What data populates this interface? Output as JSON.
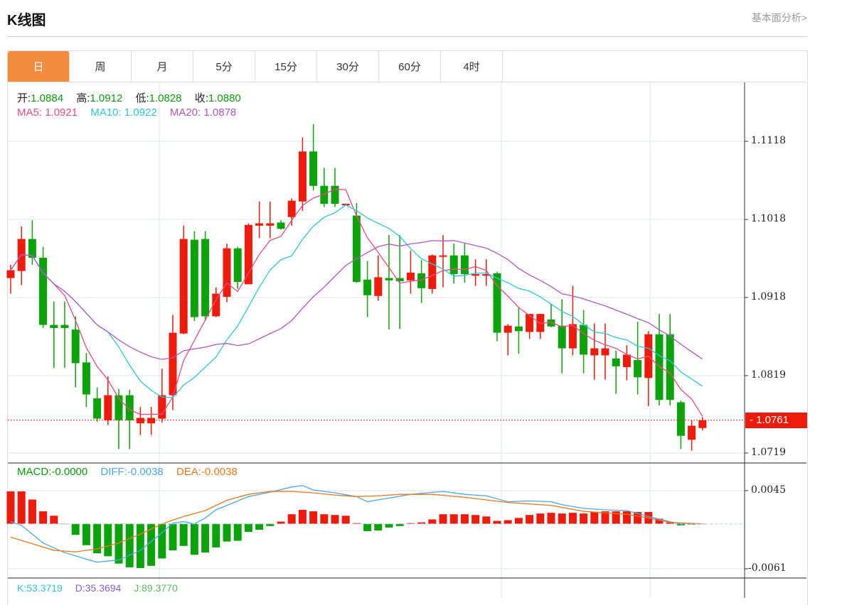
{
  "header": {
    "title": "K线图",
    "link": "基本面分析>"
  },
  "tabs": [
    {
      "label": "日",
      "active": true
    },
    {
      "label": "周"
    },
    {
      "label": "月"
    },
    {
      "label": "5分"
    },
    {
      "label": "15分"
    },
    {
      "label": "30分"
    },
    {
      "label": "60分"
    },
    {
      "label": "4时"
    }
  ],
  "ohlc": {
    "open_label": "开:",
    "open": "1.0884",
    "high_label": "高:",
    "high": "1.0912",
    "low_label": "低:",
    "low": "1.0828",
    "close_label": "收:",
    "close": "1.0880"
  },
  "ma": {
    "ma5_label": "MA5:",
    "ma5": "1.0921",
    "ma10_label": "MA10:",
    "ma10": "1.0922",
    "ma20_label": "MA20:",
    "ma20": "1.0878"
  },
  "macd_info": {
    "macd_label": "MACD:",
    "macd": "-0.0000",
    "diff_label": "DIFF:",
    "diff": "-0.0038",
    "dea_label": "DEA:",
    "dea": "-0.0038"
  },
  "kdj_info": {
    "k_label": "K:",
    "k": "53.3719",
    "d_label": "D:",
    "d": "35.3694",
    "j_label": "J:",
    "j": "89.3770"
  },
  "colors": {
    "up": "#f01a0a",
    "down": "#0aa30a",
    "ma5": "#ee4a7f",
    "ma10": "#2cc6dc",
    "ma20": "#b456c8",
    "diff": "#4aa8f0",
    "dea": "#f5761a",
    "tab_active": "#f28c3f"
  },
  "chart_data": {
    "type": "candlestick",
    "price_axis": {
      "ticks": [
        "1.1118",
        "1.1018",
        "1.0918",
        "1.0819",
        "1.0719"
      ],
      "range": [
        1.0719,
        1.1118
      ]
    },
    "last_price": "1.0761",
    "candles": [
      [
        1.0943,
        1.096,
        1.0923,
        1.0953
      ],
      [
        1.0952,
        1.1009,
        1.0934,
        1.0993
      ],
      [
        1.0993,
        1.1017,
        1.096,
        1.0969
      ],
      [
        1.0969,
        1.0983,
        1.0879,
        1.0883
      ],
      [
        1.0883,
        1.0913,
        1.0828,
        1.0879
      ],
      [
        1.0883,
        1.0913,
        1.0828,
        1.0879
      ],
      [
        1.0877,
        1.0894,
        1.0803,
        1.0834
      ],
      [
        1.0835,
        1.0847,
        1.0778,
        1.0794
      ],
      [
        1.0789,
        1.0803,
        1.0759,
        1.0763
      ],
      [
        1.0761,
        1.0817,
        1.0755,
        1.0793
      ],
      [
        1.0793,
        1.0801,
        1.0724,
        1.0761
      ],
      [
        1.0793,
        1.08,
        1.0724,
        1.0761
      ],
      [
        1.0757,
        1.0778,
        1.0742,
        1.0764
      ],
      [
        1.0757,
        1.0778,
        1.0742,
        1.0764
      ],
      [
        1.0763,
        1.0827,
        1.0758,
        1.0793
      ],
      [
        1.0793,
        1.0896,
        1.0774,
        1.0873
      ],
      [
        1.0872,
        1.101,
        1.0871,
        1.0993
      ],
      [
        1.0992,
        1.1003,
        1.0888,
        1.0893
      ],
      [
        1.0993,
        1.1003,
        1.0888,
        1.0894
      ],
      [
        1.0894,
        1.0931,
        1.0893,
        1.0923
      ],
      [
        1.0919,
        1.0987,
        1.0912,
        1.0981
      ],
      [
        1.0981,
        1.0983,
        1.0929,
        1.0938
      ],
      [
        1.0935,
        1.1013,
        1.0935,
        1.1011
      ],
      [
        1.101,
        1.1041,
        1.0994,
        1.1013
      ],
      [
        1.101,
        1.1041,
        1.0994,
        1.1013
      ],
      [
        1.1014,
        1.1017,
        1.1005,
        1.1006
      ],
      [
        1.1021,
        1.1045,
        1.101,
        1.1042
      ],
      [
        1.1041,
        1.1123,
        1.1029,
        1.1105
      ],
      [
        1.1105,
        1.114,
        1.1055,
        1.1061
      ],
      [
        1.1061,
        1.1084,
        1.1034,
        1.1038
      ],
      [
        1.1061,
        1.1084,
        1.1034,
        1.1038
      ],
      [
        1.1036,
        1.1038,
        1.1036,
        1.1038
      ],
      [
        1.1023,
        1.1039,
        1.0937,
        1.0938
      ],
      [
        1.0941,
        1.0965,
        1.0893,
        1.0921
      ],
      [
        1.092,
        1.0972,
        1.0914,
        1.0944
      ],
      [
        1.0943,
        1.0998,
        1.0877,
        1.094
      ],
      [
        1.0943,
        1.0998,
        1.0878,
        1.0939
      ],
      [
        1.094,
        1.0978,
        1.0923,
        1.095
      ],
      [
        1.0949,
        1.0966,
        1.0911,
        1.093
      ],
      [
        1.0929,
        1.0973,
        1.0923,
        1.0972
      ],
      [
        1.0971,
        1.0998,
        1.0931,
        1.0972
      ],
      [
        1.0972,
        1.0987,
        1.0936,
        1.0948
      ],
      [
        1.0972,
        1.0987,
        1.0937,
        1.0948
      ],
      [
        1.0946,
        1.0967,
        1.0933,
        1.0948
      ],
      [
        1.0946,
        1.0967,
        1.0933,
        1.0948
      ],
      [
        1.0949,
        1.0951,
        1.0862,
        1.0873
      ],
      [
        1.0873,
        1.0884,
        1.0844,
        1.0882
      ],
      [
        1.0881,
        1.0906,
        1.0846,
        1.0875
      ],
      [
        1.0874,
        1.0897,
        1.0865,
        1.0897
      ],
      [
        1.0874,
        1.0897,
        1.0865,
        1.0897
      ],
      [
        1.089,
        1.091,
        1.088,
        1.0881
      ],
      [
        1.0882,
        1.0916,
        1.0821,
        1.0853
      ],
      [
        1.0853,
        1.0933,
        1.0844,
        1.0884
      ],
      [
        1.0883,
        1.0902,
        1.0821,
        1.0845
      ],
      [
        1.0844,
        1.0885,
        1.0813,
        1.0853
      ],
      [
        1.0844,
        1.0885,
        1.0813,
        1.0853
      ],
      [
        1.084,
        1.085,
        1.0795,
        1.083
      ],
      [
        1.0829,
        1.0857,
        1.0812,
        1.0845
      ],
      [
        1.0838,
        1.0887,
        1.0794,
        1.0816
      ],
      [
        1.0815,
        1.0875,
        1.0779,
        1.0871
      ],
      [
        1.0871,
        1.0897,
        1.078,
        1.0787
      ],
      [
        1.0871,
        1.0897,
        1.078,
        1.0787
      ],
      [
        1.0784,
        1.0786,
        1.0724,
        1.0741
      ],
      [
        1.0736,
        1.0761,
        1.0722,
        1.0754
      ],
      [
        1.0751,
        1.0765,
        1.0748,
        1.0761
      ]
    ],
    "macd_axis": {
      "ticks": [
        "0.0045",
        "-0.0061"
      ],
      "range": [
        -0.0061,
        0.0045
      ]
    },
    "macd_hist": [
      0.0044,
      0.0044,
      0.0033,
      0.0017,
      0.0011,
      0.0,
      -0.0015,
      -0.0029,
      -0.004,
      -0.0044,
      -0.0054,
      -0.0059,
      -0.006,
      -0.0057,
      -0.0047,
      -0.0036,
      -0.003,
      -0.0042,
      -0.0039,
      -0.0032,
      -0.0024,
      -0.0023,
      -0.0011,
      -0.0008,
      -0.0003,
      0.0003,
      0.0013,
      0.0019,
      0.0017,
      0.0013,
      0.0012,
      0.0011,
      0.0001,
      -0.001,
      -0.0009,
      -0.0005,
      -0.0003,
      0.0001,
      0.0002,
      0.0006,
      0.0013,
      0.0013,
      0.0013,
      0.0012,
      0.001,
      0.0004,
      0.0005,
      0.0008,
      0.0012,
      0.0014,
      0.0015,
      0.0014,
      0.0015,
      0.0014,
      0.0016,
      0.0017,
      0.0017,
      0.0017,
      0.0016,
      0.0016,
      0.0007,
      0.0002,
      -0.0002,
      -0.0001,
      0.0
    ],
    "diff": [
      [
        0,
        0.0003
      ],
      [
        1,
        -0.0002
      ],
      [
        3,
        -0.0026
      ],
      [
        5,
        -0.0039
      ],
      [
        7,
        -0.0048
      ],
      [
        8,
        -0.0052
      ],
      [
        10,
        -0.0049
      ],
      [
        12,
        -0.0036
      ],
      [
        14,
        -0.0012
      ],
      [
        15,
        0.0001
      ],
      [
        16,
        0.0003
      ],
      [
        17,
        0.0
      ],
      [
        18,
        0.0008
      ],
      [
        19,
        0.0019
      ],
      [
        20,
        0.0025
      ],
      [
        21,
        0.0031
      ],
      [
        22,
        0.0037
      ],
      [
        24,
        0.0043
      ],
      [
        26,
        0.005
      ],
      [
        27,
        0.0052
      ],
      [
        28,
        0.0046
      ],
      [
        30,
        0.0042
      ],
      [
        32,
        0.0037
      ],
      [
        33,
        0.003
      ],
      [
        35,
        0.0035
      ],
      [
        37,
        0.004
      ],
      [
        40,
        0.0044
      ],
      [
        42,
        0.004
      ],
      [
        44,
        0.0038
      ],
      [
        46,
        0.003
      ],
      [
        48,
        0.0031
      ],
      [
        50,
        0.003
      ],
      [
        51,
        0.0026
      ],
      [
        53,
        0.0021
      ],
      [
        55,
        0.0019
      ],
      [
        57,
        0.0018
      ],
      [
        59,
        0.001
      ],
      [
        61,
        0.0003
      ],
      [
        62,
        0.0
      ],
      [
        64,
        0.0
      ]
    ],
    "dea": [
      [
        0,
        -0.0018
      ],
      [
        2,
        -0.0027
      ],
      [
        4,
        -0.0036
      ],
      [
        6,
        -0.0038
      ],
      [
        8,
        -0.0034
      ],
      [
        10,
        -0.0026
      ],
      [
        12,
        -0.0014
      ],
      [
        14,
        0.0
      ],
      [
        16,
        0.001
      ],
      [
        18,
        0.0018
      ],
      [
        20,
        0.0032
      ],
      [
        22,
        0.004
      ],
      [
        24,
        0.0044
      ],
      [
        26,
        0.0044
      ],
      [
        28,
        0.0042
      ],
      [
        30,
        0.0039
      ],
      [
        32,
        0.0037
      ],
      [
        34,
        0.0038
      ],
      [
        36,
        0.004
      ],
      [
        39,
        0.004
      ],
      [
        42,
        0.0036
      ],
      [
        46,
        0.0029
      ],
      [
        50,
        0.0025
      ],
      [
        53,
        0.0017
      ],
      [
        57,
        0.0013
      ],
      [
        59,
        0.0008
      ],
      [
        61,
        0.0002
      ],
      [
        64,
        0.0
      ]
    ]
  }
}
